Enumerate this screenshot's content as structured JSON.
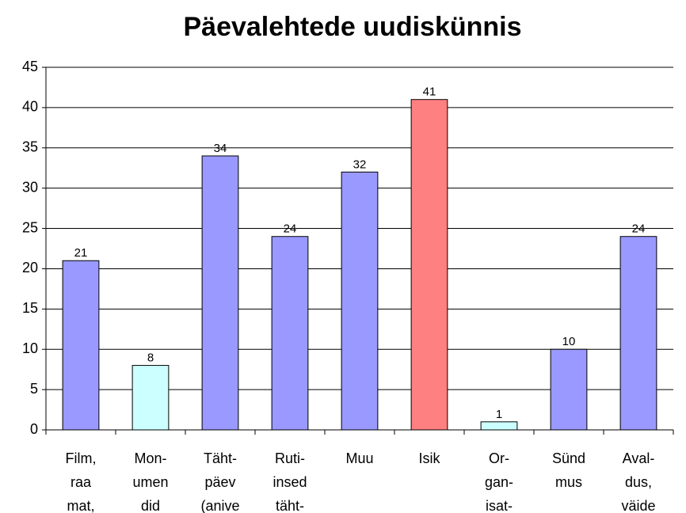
{
  "chart_data": {
    "type": "bar",
    "title": "Päevalehtede uudiskünnis",
    "categories": [
      "Film,\nraa\nmat,",
      "Mon-\numen\ndid",
      "Täht-\npäev\n(anive",
      "Ruti-\ninsed\ntäht-",
      "Muu",
      "Isik",
      "Or-\ngan-\nisat-",
      "Sünd\nmus",
      "Aval-\ndus,\nväide"
    ],
    "values": [
      21,
      8,
      34,
      24,
      32,
      41,
      1,
      10,
      24
    ],
    "colors": [
      "#9999ff",
      "#ccffff",
      "#9999ff",
      "#9999ff",
      "#9999ff",
      "#ff8080",
      "#ccffff",
      "#9999ff",
      "#9999ff"
    ],
    "ylim": [
      0,
      45
    ],
    "yticks": [
      0,
      5,
      10,
      15,
      20,
      25,
      30,
      35,
      40,
      45
    ],
    "grid": true
  }
}
